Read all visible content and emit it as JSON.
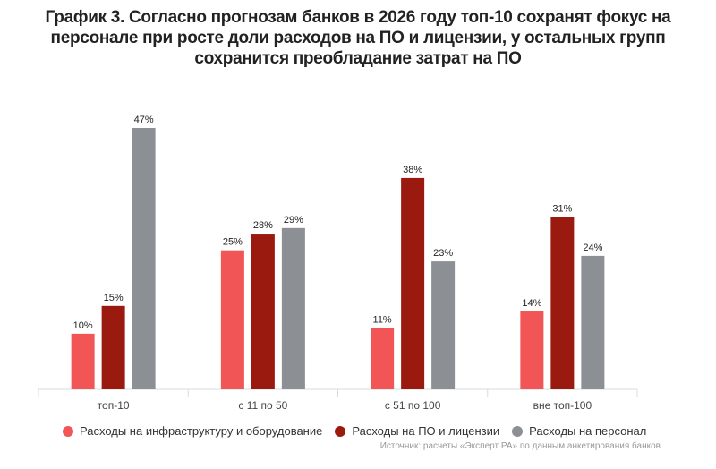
{
  "chart_data": {
    "type": "bar",
    "title": "График 3. Согласно прогнозам банков в 2026 году топ-10 сохранят фокус на персонале при росте доли расходов на ПО и лицензии, у остальных групп сохранится преобладание затрат на ПО",
    "categories": [
      "топ-10",
      "с 11 по 50",
      "с 51 по 100",
      "вне топ-100"
    ],
    "series": [
      {
        "name": "Расходы на инфраструктуру и оборудование",
        "color": "#f25555",
        "values": [
          10,
          25,
          11,
          14
        ]
      },
      {
        "name": "Расходы на ПО и лицензии",
        "color": "#9b1a10",
        "values": [
          15,
          28,
          38,
          31
        ]
      },
      {
        "name": "Расходы на персонал",
        "color": "#8c8f93",
        "values": [
          47,
          29,
          23,
          24
        ]
      }
    ],
    "value_suffix": "%",
    "ylim": [
      0,
      47
    ],
    "grid": false,
    "legend": "bottom",
    "source": "Источник: расчеты «Эксперт РА» по данным анкетирования банков"
  }
}
